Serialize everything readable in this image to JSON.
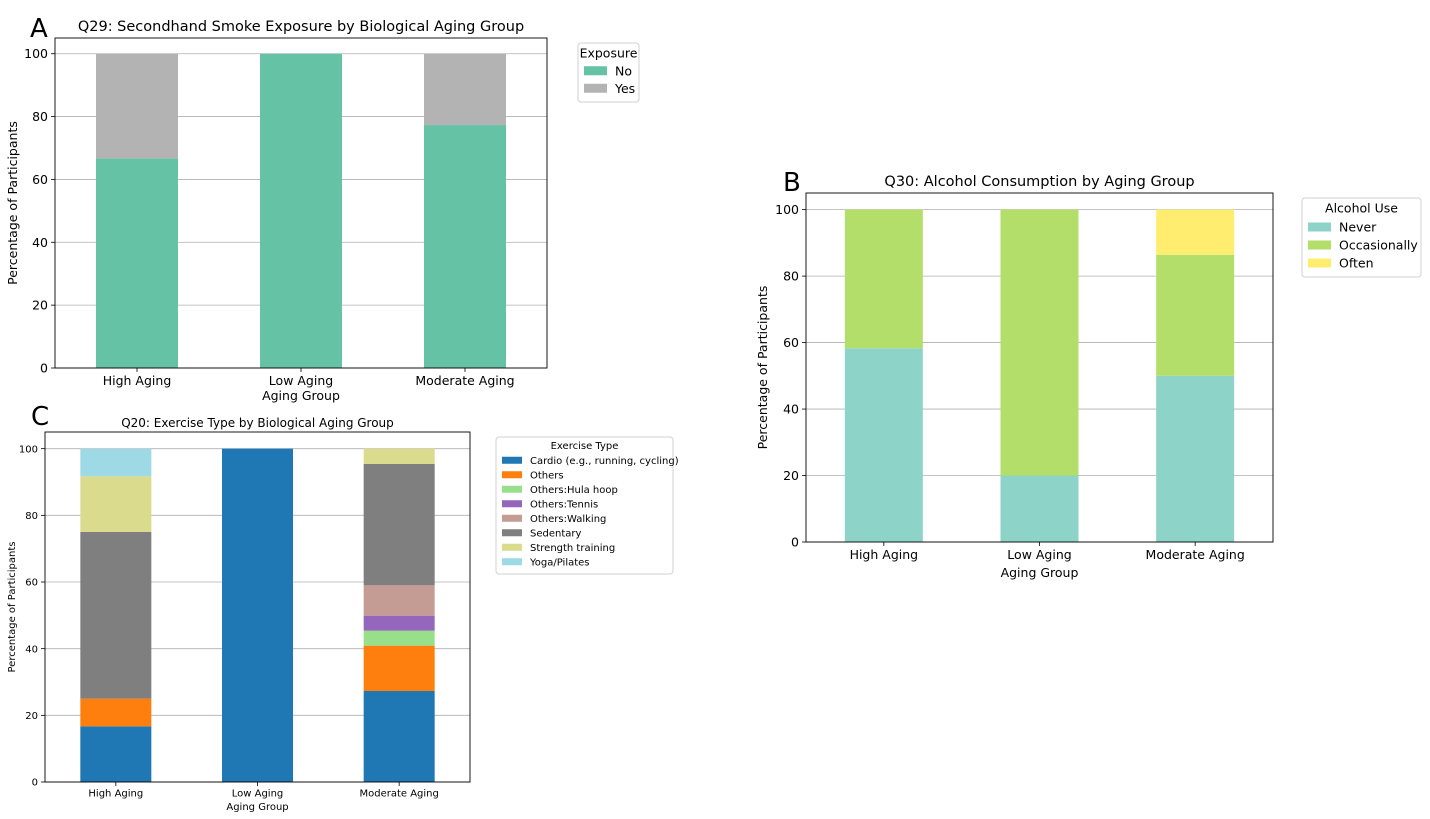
{
  "chart_data": [
    {
      "panel": "A",
      "type": "bar",
      "stacked": true,
      "title": "Q29: Secondhand Smoke Exposure by Biological Aging Group",
      "xlabel": "Aging Group",
      "ylabel": "Percentage of Participants",
      "ylim": [
        0,
        105
      ],
      "yticks": [
        "0",
        "20",
        "40",
        "60",
        "80",
        "100"
      ],
      "grid": "y",
      "categories": [
        "High Aging",
        "Low Aging",
        "Moderate Aging"
      ],
      "legend_title": "Exposure",
      "legend_position": "outside-right-top",
      "series": [
        {
          "name": "No",
          "color": "#66c2a5",
          "values": [
            66.7,
            100,
            77.3
          ]
        },
        {
          "name": "Yes",
          "color": "#b3b3b3",
          "values": [
            33.3,
            0,
            22.7
          ]
        }
      ]
    },
    {
      "panel": "B",
      "type": "bar",
      "stacked": true,
      "title": "Q30: Alcohol Consumption by Aging Group",
      "xlabel": "Aging Group",
      "ylabel": "Percentage of Participants",
      "ylim": [
        0,
        105
      ],
      "yticks": [
        "0",
        "20",
        "40",
        "60",
        "80",
        "100"
      ],
      "grid": "y",
      "categories": [
        "High Aging",
        "Low Aging",
        "Moderate Aging"
      ],
      "legend_title": "Alcohol Use",
      "legend_position": "outside-right-top",
      "series": [
        {
          "name": "Never",
          "color": "#8dd3c7",
          "values": [
            58.3,
            20,
            50
          ]
        },
        {
          "name": "Occasionally",
          "color": "#b3de69",
          "values": [
            41.7,
            80,
            36.4
          ]
        },
        {
          "name": "Often",
          "color": "#ffed6f",
          "values": [
            0,
            0,
            13.6
          ]
        }
      ]
    },
    {
      "panel": "C",
      "type": "bar",
      "stacked": true,
      "title": "Q20: Exercise Type by Biological Aging Group",
      "xlabel": "Aging Group",
      "ylabel": "Percentage of Participants",
      "ylim": [
        0,
        105
      ],
      "yticks": [
        "0",
        "20",
        "40",
        "60",
        "80",
        "100"
      ],
      "grid": "y",
      "categories": [
        "High Aging",
        "Low Aging",
        "Moderate Aging"
      ],
      "legend_title": "Exercise Type",
      "legend_position": "outside-right-top",
      "series": [
        {
          "name": "Cardio (e.g., running, cycling)",
          "color": "#1f77b4",
          "values": [
            16.7,
            100,
            27.3
          ]
        },
        {
          "name": "Others",
          "color": "#ff7f0e",
          "values": [
            8.3,
            0,
            13.6
          ]
        },
        {
          "name": "Others:Hula hoop",
          "color": "#98df8a",
          "values": [
            0,
            0,
            4.5
          ]
        },
        {
          "name": "Others:Tennis",
          "color": "#9467bd",
          "values": [
            0,
            0,
            4.5
          ]
        },
        {
          "name": "Others:Walking",
          "color": "#c49c94",
          "values": [
            0,
            0,
            9.1
          ]
        },
        {
          "name": "Sedentary",
          "color": "#7f7f7f",
          "values": [
            50,
            0,
            36.4
          ]
        },
        {
          "name": "Strength training",
          "color": "#dbdb8d",
          "values": [
            16.7,
            0,
            4.6
          ]
        },
        {
          "name": "Yoga/Pilates",
          "color": "#9edae5",
          "values": [
            8.3,
            0,
            0
          ]
        }
      ]
    }
  ]
}
